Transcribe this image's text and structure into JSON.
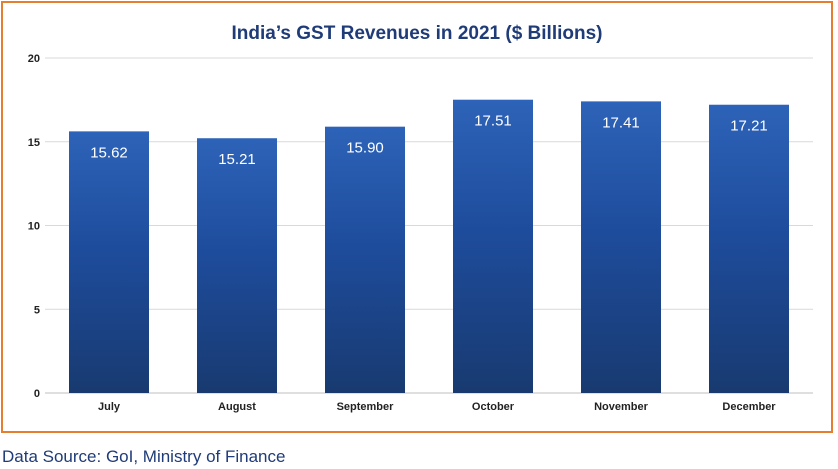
{
  "chart_data": {
    "type": "bar",
    "title": "India’s GST Revenues in 2021 ($ Billions)",
    "categories": [
      "July",
      "August",
      "September",
      "October",
      "November",
      "December"
    ],
    "values": [
      15.62,
      15.21,
      15.9,
      17.51,
      17.41,
      17.21
    ],
    "data_labels": [
      "15.62",
      "15.21",
      "15.90",
      "17.51",
      "17.41",
      "17.21"
    ],
    "xlabel": "",
    "ylabel": "",
    "ylim": [
      0,
      20
    ],
    "yticks": [
      0,
      5,
      10,
      15,
      20
    ],
    "grid": true,
    "legend": "none",
    "colors": {
      "bar_top": "#2d63b8",
      "bar_bottom": "#183a70",
      "border": "#e57f2f",
      "title": "#1f3b78"
    }
  },
  "footer": {
    "source": "Data Source: GoI, Ministry of Finance"
  }
}
